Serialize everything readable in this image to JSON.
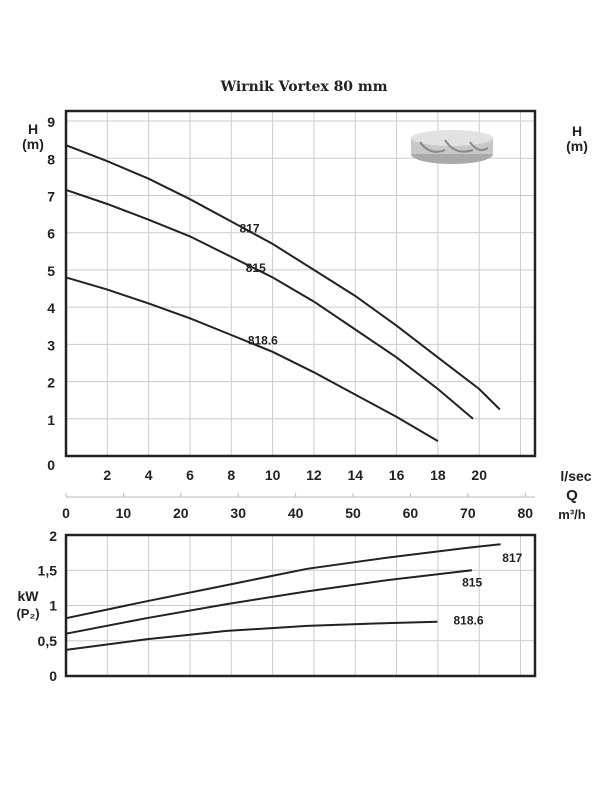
{
  "chart_data": [
    {
      "type": "line",
      "title": "Wirnik Vortex 80 mm",
      "xlabel": "l/sec",
      "ylabel": "H (m)",
      "ylabel_right": "H (m)",
      "xlim": [
        0,
        22.7
      ],
      "ylim": [
        0,
        9.27
      ],
      "xticks": [
        2,
        4,
        6,
        8,
        10,
        12,
        14,
        16,
        18,
        20
      ],
      "yticks": [
        0,
        1,
        2,
        3,
        4,
        5,
        6,
        7,
        8,
        9
      ],
      "grid": true,
      "image": "vortex-impeller",
      "series": [
        {
          "name": "817",
          "x": [
            0,
            2,
            4,
            6,
            8,
            10,
            12,
            14,
            16,
            18,
            20,
            21
          ],
          "y": [
            8.35,
            7.92,
            7.45,
            6.9,
            6.3,
            5.7,
            5.0,
            4.3,
            3.5,
            2.65,
            1.8,
            1.25
          ]
        },
        {
          "name": "815",
          "x": [
            0,
            2,
            4,
            6,
            8,
            10,
            12,
            14,
            16,
            18,
            19.7
          ],
          "y": [
            7.15,
            6.77,
            6.35,
            5.9,
            5.35,
            4.8,
            4.15,
            3.4,
            2.65,
            1.8,
            1.0
          ]
        },
        {
          "name": "818.6",
          "x": [
            0,
            2,
            4,
            6,
            8,
            10,
            12,
            14,
            16,
            18
          ],
          "y": [
            4.8,
            4.47,
            4.1,
            3.7,
            3.25,
            2.8,
            2.25,
            1.65,
            1.05,
            0.4
          ]
        }
      ]
    },
    {
      "type": "line",
      "xlabel": "Q m³/h",
      "ylabel": "kW (P₂)",
      "xlim": [
        0,
        81.7
      ],
      "ylim": [
        0,
        2
      ],
      "xticks": [
        0,
        10,
        20,
        30,
        40,
        50,
        60,
        70,
        80
      ],
      "yticks": [
        "0",
        "0,5",
        "1",
        "1,5",
        "2"
      ],
      "ytick_values": [
        0,
        0.5,
        1,
        1.5,
        2
      ],
      "grid": true,
      "series": [
        {
          "name": "817",
          "x": [
            0,
            14,
            28,
            42,
            56,
            70,
            75.7
          ],
          "y": [
            0.82,
            1.06,
            1.29,
            1.52,
            1.68,
            1.82,
            1.87
          ]
        },
        {
          "name": "815",
          "x": [
            0,
            14,
            28,
            42,
            56,
            70.7
          ],
          "y": [
            0.6,
            0.82,
            1.02,
            1.2,
            1.36,
            1.5
          ]
        },
        {
          "name": "818.6",
          "x": [
            0,
            14,
            28,
            42,
            56,
            64.7
          ],
          "y": [
            0.37,
            0.52,
            0.64,
            0.71,
            0.75,
            0.77
          ]
        }
      ]
    }
  ]
}
